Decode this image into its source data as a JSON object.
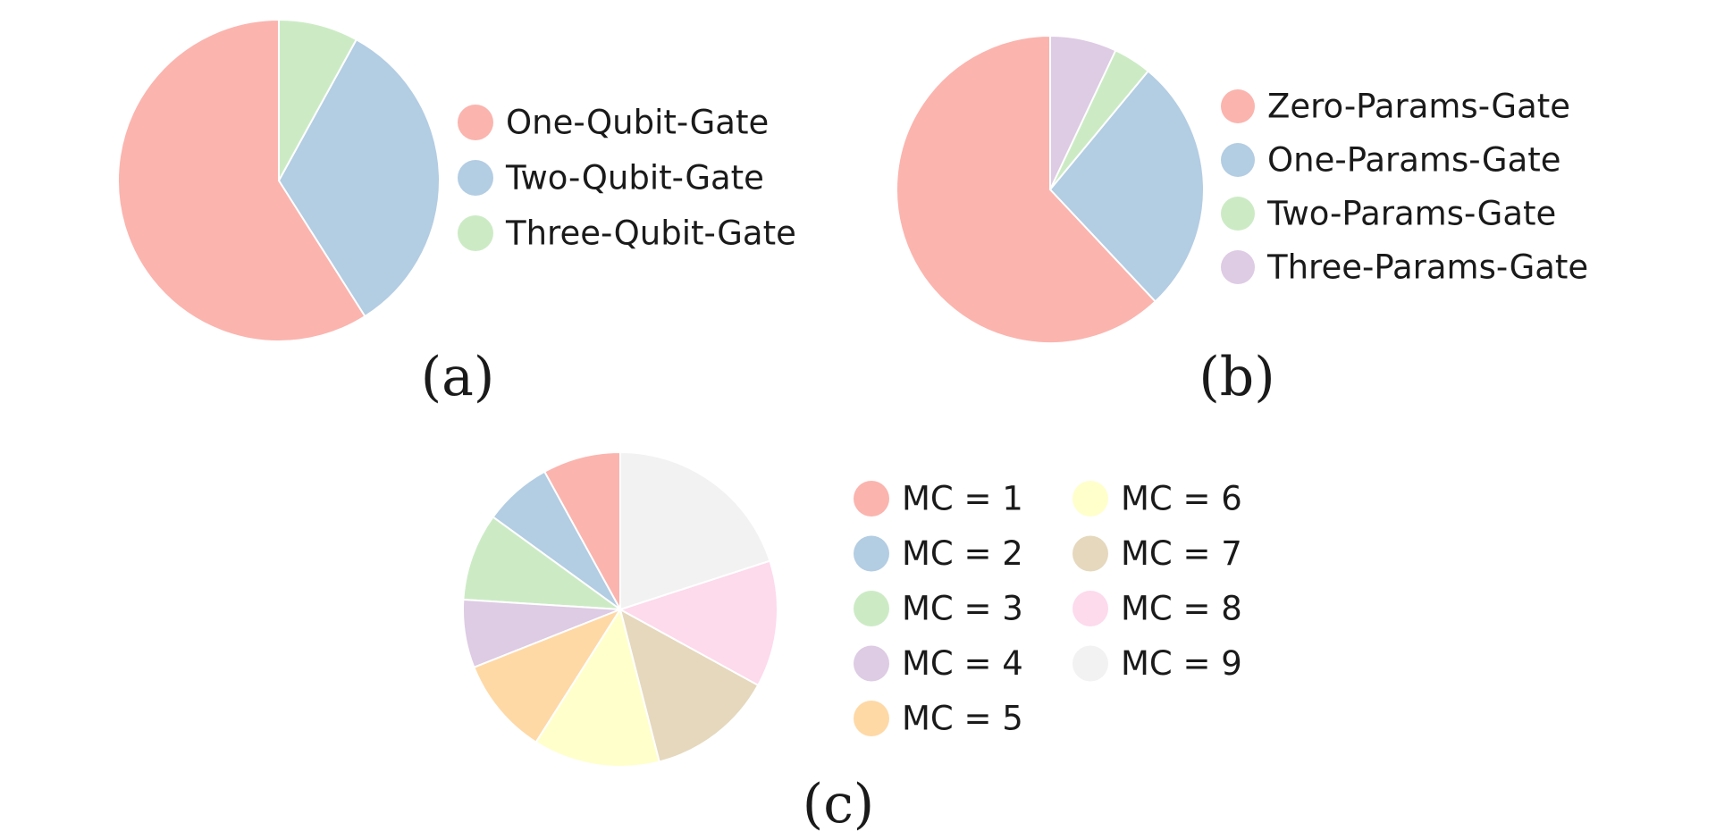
{
  "chart_data": [
    {
      "type": "pie",
      "caption": "(a)",
      "categories": [
        "One-Qubit-Gate",
        "Two-Qubit-Gate",
        "Three-Qubit-Gate"
      ],
      "values": [
        59,
        33,
        8
      ],
      "colors": [
        "#fbb4ae",
        "#b3cde3",
        "#ccebc5"
      ],
      "legend": "right"
    },
    {
      "type": "pie",
      "caption": "(b)",
      "categories": [
        "Zero-Params-Gate",
        "One-Params-Gate",
        "Two-Params-Gate",
        "Three-Params-Gate"
      ],
      "values": [
        62,
        27,
        4,
        7
      ],
      "colors": [
        "#fbb4ae",
        "#b3cde3",
        "#ccebc5",
        "#decbe4"
      ],
      "legend": "right"
    },
    {
      "type": "pie",
      "caption": "(c)",
      "categories": [
        "MC = 1",
        "MC = 2",
        "MC = 3",
        "MC = 4",
        "MC = 5",
        "MC = 6",
        "MC = 7",
        "MC = 8",
        "MC = 9"
      ],
      "values": [
        8,
        7,
        9,
        7,
        10,
        13,
        13,
        13,
        20
      ],
      "colors": [
        "#fbb4ae",
        "#b3cde3",
        "#ccebc5",
        "#decbe4",
        "#fed9a6",
        "#ffffcc",
        "#e5d8bd",
        "#fddaec",
        "#f2f2f2"
      ],
      "legend": "right, two columns"
    }
  ]
}
